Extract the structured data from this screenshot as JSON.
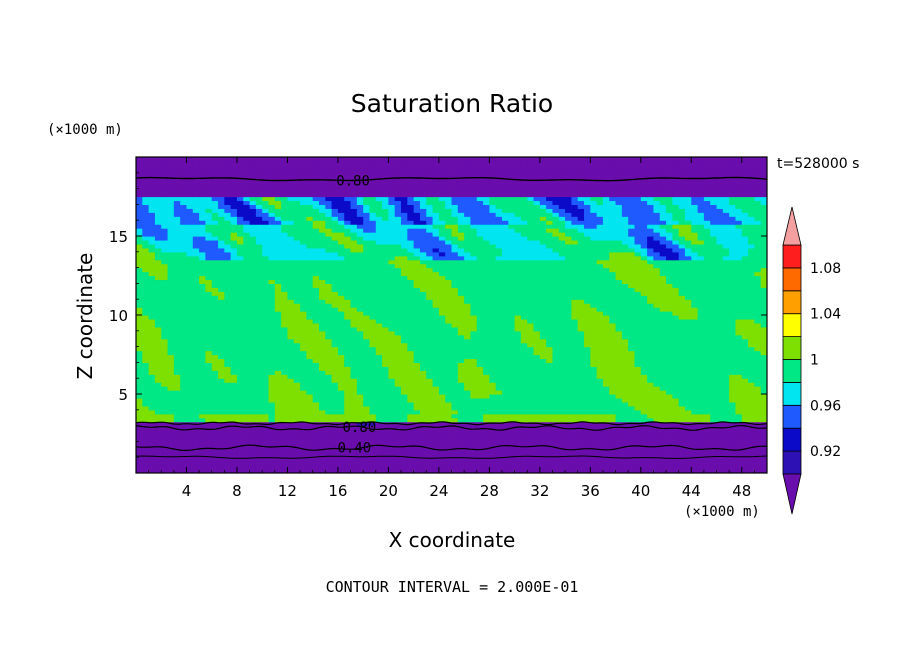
{
  "chart_data": {
    "type": "heatmap",
    "title": "Saturation Ratio",
    "xlabel": "X coordinate",
    "ylabel": "Z coordinate",
    "x_unit": "(×1000 m)",
    "y_unit": "(×1000 m)",
    "time_label": "t=528000 s",
    "footer": "CONTOUR INTERVAL = 2.000E-01",
    "xlim": [
      0,
      50
    ],
    "ylim": [
      0,
      20
    ],
    "x_ticks": [
      4,
      8,
      12,
      16,
      20,
      24,
      28,
      32,
      36,
      40,
      44,
      48
    ],
    "y_ticks": [
      5,
      10,
      15
    ],
    "x_tick_labels": [
      "4",
      "8",
      "12",
      "16",
      "20",
      "24",
      "28",
      "32",
      "36",
      "40",
      "44",
      "48"
    ],
    "y_tick_labels": [
      "5",
      "10",
      "15"
    ],
    "colorbar": {
      "levels": [
        0.9,
        0.92,
        0.94,
        0.96,
        0.98,
        1.0,
        1.02,
        1.04,
        1.06,
        1.08,
        1.1
      ],
      "colors": [
        "#6a0dad",
        "#2d11b4",
        "#0a0ac8",
        "#1e5aff",
        "#00e5f0",
        "#00e886",
        "#7de000",
        "#ffff00",
        "#ffa000",
        "#ff6a00",
        "#ff1e1e",
        "#f5a0a0"
      ],
      "labels": [
        "0.92",
        "0.96",
        "1",
        "1.04",
        "1.08"
      ],
      "label_values": [
        0.92,
        0.96,
        1.0,
        1.04,
        1.08
      ]
    },
    "contour_labels": [
      {
        "text": "0.80",
        "x": 17.2,
        "y": 18.5
      },
      {
        "text": "0.80",
        "x": 17.7,
        "y": 2.9
      },
      {
        "text": "0.40",
        "x": 17.3,
        "y": 1.6
      }
    ],
    "bands": [
      {
        "level": 0.9,
        "y": [
          0,
          3.2
        ]
      },
      {
        "level": 0.9,
        "y": [
          18.0,
          20.0
        ]
      },
      {
        "level": 1.0,
        "y": [
          3.3,
          14.5
        ]
      },
      {
        "level": 0.98,
        "y": [
          14.5,
          17.5
        ]
      }
    ]
  }
}
